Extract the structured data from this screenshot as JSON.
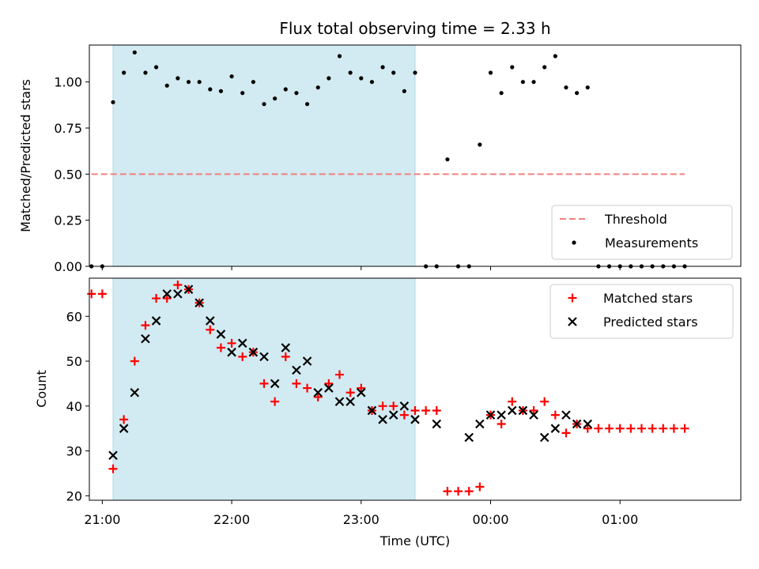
{
  "chart_data": [
    {
      "type": "scatter",
      "title": "Flux total observing time = 2.33 h",
      "xlabel": "",
      "ylabel": "Matched/Predicted stars",
      "ylim": [
        0,
        1.2
      ],
      "yticks": [
        "0.00",
        "0.25",
        "0.50",
        "0.75",
        "1.00"
      ],
      "xlim": [
        "20:54",
        "01:56"
      ],
      "xticks": [
        "21:00",
        "22:00",
        "23:00",
        "00:00",
        "01:00"
      ],
      "shaded_span": [
        "21:05",
        "23:25"
      ],
      "shaded_color": "#add8e6",
      "threshold": {
        "name": "Threshold",
        "value": 0.5,
        "x_range": [
          "20:55",
          "01:30"
        ],
        "color": "#f08080",
        "style": "dashed"
      },
      "legend": {
        "placement": "lower-right",
        "entries": [
          "Threshold",
          "Measurements"
        ]
      },
      "series": [
        {
          "name": "Measurements",
          "marker": "dot",
          "color": "#000000",
          "x": [
            "20:55",
            "21:00",
            "21:05",
            "21:10",
            "21:15",
            "21:20",
            "21:25",
            "21:30",
            "21:35",
            "21:40",
            "21:45",
            "21:50",
            "21:55",
            "22:00",
            "22:05",
            "22:10",
            "22:15",
            "22:20",
            "22:25",
            "22:30",
            "22:35",
            "22:40",
            "22:45",
            "22:50",
            "22:55",
            "23:00",
            "23:05",
            "23:10",
            "23:15",
            "23:20",
            "23:25",
            "23:30",
            "23:35",
            "23:40",
            "23:45",
            "23:50",
            "23:55",
            "00:00",
            "00:05",
            "00:10",
            "00:15",
            "00:20",
            "00:25",
            "00:30",
            "00:35",
            "00:40",
            "00:45",
            "00:50",
            "00:55",
            "01:00",
            "01:05",
            "01:10",
            "01:15",
            "01:20",
            "01:25",
            "01:30"
          ],
          "y": [
            0,
            0,
            0.89,
            1.05,
            1.16,
            1.05,
            1.08,
            0.98,
            1.02,
            1.0,
            1.0,
            0.96,
            0.95,
            1.03,
            0.94,
            1.0,
            0.88,
            0.91,
            0.96,
            0.94,
            0.88,
            0.97,
            1.02,
            1.14,
            1.05,
            1.02,
            1.0,
            1.08,
            1.05,
            0.95,
            1.05,
            0,
            0,
            0.58,
            0,
            0,
            0.66,
            1.05,
            0.94,
            1.08,
            1.0,
            1.0,
            1.08,
            1.14,
            0.97,
            0.94,
            0.97,
            0,
            0,
            0,
            0,
            0,
            0,
            0,
            0,
            0
          ]
        }
      ]
    },
    {
      "type": "scatter",
      "title": "",
      "xlabel": "Time (UTC)",
      "ylabel": "Count",
      "ylim": [
        19,
        68.5
      ],
      "yticks": [
        "20",
        "30",
        "40",
        "50",
        "60"
      ],
      "xlim": [
        "20:54",
        "01:56"
      ],
      "xticks": [
        "21:00",
        "22:00",
        "23:00",
        "00:00",
        "01:00"
      ],
      "shaded_span": [
        "21:05",
        "23:25"
      ],
      "shaded_color": "#add8e6",
      "legend": {
        "placement": "upper-right",
        "entries": [
          "Matched stars",
          "Predicted stars"
        ]
      },
      "series": [
        {
          "name": "Matched stars",
          "marker": "plus",
          "color": "#ff0000",
          "x": [
            "20:55",
            "21:00",
            "21:05",
            "21:10",
            "21:15",
            "21:20",
            "21:25",
            "21:30",
            "21:35",
            "21:40",
            "21:45",
            "21:50",
            "21:55",
            "22:00",
            "22:05",
            "22:10",
            "22:15",
            "22:20",
            "22:25",
            "22:30",
            "22:35",
            "22:40",
            "22:45",
            "22:50",
            "22:55",
            "23:00",
            "23:05",
            "23:10",
            "23:15",
            "23:20",
            "23:25",
            "23:30",
            "23:35",
            "23:40",
            "23:45",
            "23:50",
            "23:55",
            "00:00",
            "00:05",
            "00:10",
            "00:15",
            "00:20",
            "00:25",
            "00:30",
            "00:35",
            "00:40",
            "00:45",
            "00:50",
            "00:55",
            "01:00",
            "01:05",
            "01:10",
            "01:15",
            "01:20",
            "01:25",
            "01:30"
          ],
          "y": [
            65,
            65,
            26,
            37,
            50,
            58,
            64,
            64,
            67,
            66,
            63,
            57,
            53,
            54,
            51,
            52,
            45,
            41,
            51,
            45,
            44,
            42,
            45,
            47,
            43,
            44,
            39,
            40,
            40,
            38,
            39,
            39,
            39,
            21,
            21,
            21,
            22,
            38,
            36,
            41,
            39,
            39,
            41,
            38,
            34,
            36,
            35,
            35,
            35,
            35,
            35,
            35,
            35,
            35,
            35,
            35
          ]
        },
        {
          "name": "Predicted stars",
          "marker": "x",
          "color": "#000000",
          "x": [
            "21:05",
            "21:10",
            "21:15",
            "21:20",
            "21:25",
            "21:30",
            "21:35",
            "21:40",
            "21:45",
            "21:50",
            "21:55",
            "22:00",
            "22:05",
            "22:10",
            "22:15",
            "22:20",
            "22:25",
            "22:30",
            "22:35",
            "22:40",
            "22:45",
            "22:50",
            "22:55",
            "23:00",
            "23:05",
            "23:10",
            "23:15",
            "23:20",
            "23:25",
            "23:35",
            "23:50",
            "23:55",
            "00:00",
            "00:05",
            "00:10",
            "00:15",
            "00:20",
            "00:25",
            "00:30",
            "00:35",
            "00:40",
            "00:45"
          ],
          "y": [
            29,
            35,
            43,
            55,
            59,
            65,
            65,
            66,
            63,
            59,
            56,
            52,
            54,
            52,
            51,
            45,
            53,
            48,
            50,
            43,
            44,
            41,
            41,
            43,
            39,
            37,
            38,
            40,
            37,
            36,
            33,
            36,
            38,
            38,
            39,
            39,
            38,
            33,
            35,
            38,
            36,
            36
          ]
        }
      ]
    }
  ]
}
